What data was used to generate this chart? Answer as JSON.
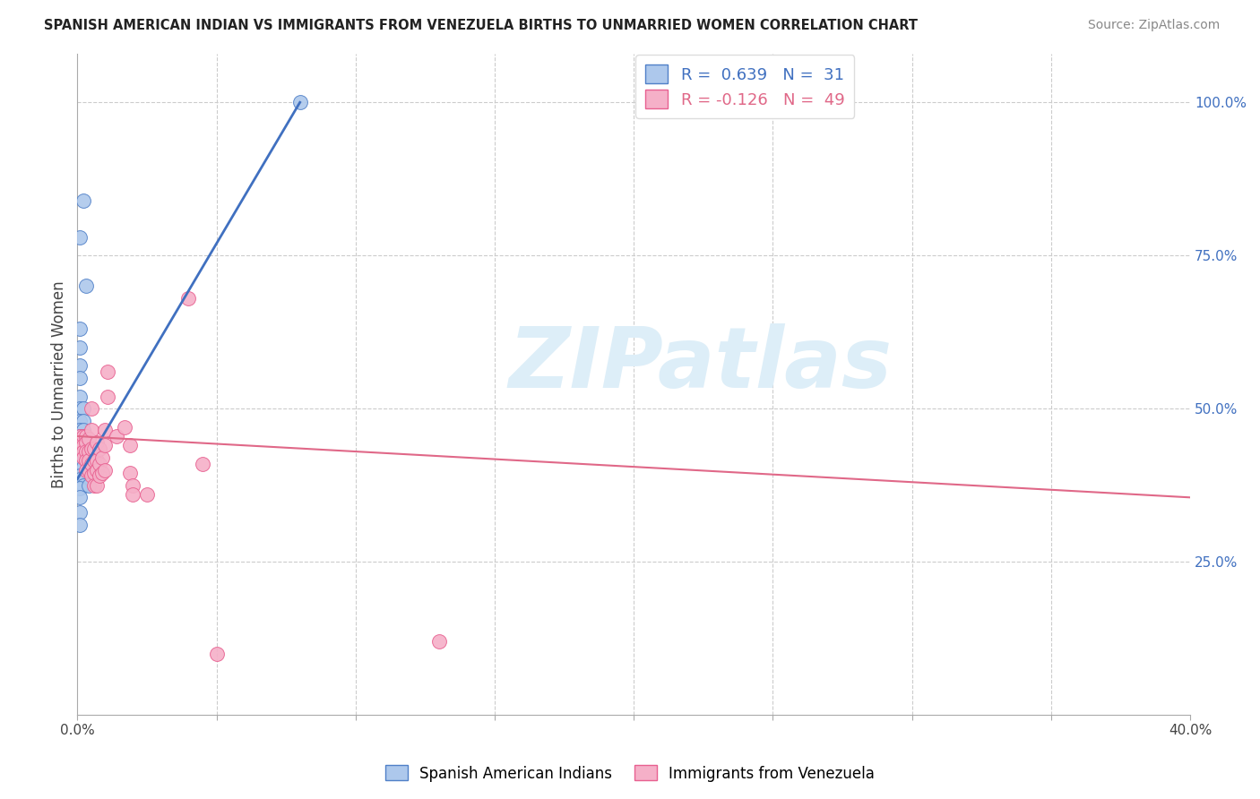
{
  "title": "SPANISH AMERICAN INDIAN VS IMMIGRANTS FROM VENEZUELA BIRTHS TO UNMARRIED WOMEN CORRELATION CHART",
  "source": "Source: ZipAtlas.com",
  "ylabel": "Births to Unmarried Women",
  "xlim": [
    0.0,
    0.4
  ],
  "ylim": [
    0.0,
    1.08
  ],
  "ytick_positions_right": [
    1.0,
    0.75,
    0.5,
    0.25
  ],
  "ytick_labels_right": [
    "100.0%",
    "75.0%",
    "50.0%",
    "25.0%"
  ],
  "xtick_positions": [
    0.0,
    0.05,
    0.1,
    0.15,
    0.2,
    0.25,
    0.3,
    0.35,
    0.4
  ],
  "xtick_labels": [
    "0.0%",
    "",
    "",
    "",
    "",
    "",
    "",
    "",
    "40.0%"
  ],
  "blue_R": "0.639",
  "blue_N": "31",
  "pink_R": "-0.126",
  "pink_N": "49",
  "blue_color": "#adc8ec",
  "pink_color": "#f5b0c8",
  "blue_edge_color": "#5080c8",
  "pink_edge_color": "#e86090",
  "blue_line_color": "#4070c0",
  "pink_line_color": "#e06888",
  "watermark_text": "ZIPatlas",
  "watermark_color": "#ddeef8",
  "blue_dots": [
    [
      0.001,
      0.78
    ],
    [
      0.002,
      0.84
    ],
    [
      0.001,
      0.63
    ],
    [
      0.003,
      0.7
    ],
    [
      0.001,
      0.6
    ],
    [
      0.001,
      0.57
    ],
    [
      0.001,
      0.55
    ],
    [
      0.001,
      0.52
    ],
    [
      0.001,
      0.5
    ],
    [
      0.002,
      0.5
    ],
    [
      0.001,
      0.48
    ],
    [
      0.002,
      0.48
    ],
    [
      0.001,
      0.465
    ],
    [
      0.002,
      0.465
    ],
    [
      0.001,
      0.455
    ],
    [
      0.002,
      0.455
    ],
    [
      0.002,
      0.445
    ],
    [
      0.001,
      0.44
    ],
    [
      0.002,
      0.43
    ],
    [
      0.001,
      0.42
    ],
    [
      0.001,
      0.41
    ],
    [
      0.002,
      0.405
    ],
    [
      0.001,
      0.39
    ],
    [
      0.001,
      0.385
    ],
    [
      0.002,
      0.375
    ],
    [
      0.001,
      0.37
    ],
    [
      0.001,
      0.355
    ],
    [
      0.001,
      0.33
    ],
    [
      0.001,
      0.31
    ],
    [
      0.004,
      0.375
    ],
    [
      0.08,
      1.0
    ]
  ],
  "pink_dots": [
    [
      0.001,
      0.455
    ],
    [
      0.001,
      0.44
    ],
    [
      0.002,
      0.455
    ],
    [
      0.002,
      0.44
    ],
    [
      0.002,
      0.43
    ],
    [
      0.002,
      0.42
    ],
    [
      0.003,
      0.455
    ],
    [
      0.003,
      0.445
    ],
    [
      0.003,
      0.43
    ],
    [
      0.003,
      0.415
    ],
    [
      0.003,
      0.4
    ],
    [
      0.004,
      0.45
    ],
    [
      0.004,
      0.43
    ],
    [
      0.004,
      0.415
    ],
    [
      0.004,
      0.4
    ],
    [
      0.005,
      0.5
    ],
    [
      0.005,
      0.465
    ],
    [
      0.005,
      0.435
    ],
    [
      0.005,
      0.41
    ],
    [
      0.005,
      0.39
    ],
    [
      0.006,
      0.435
    ],
    [
      0.006,
      0.415
    ],
    [
      0.006,
      0.395
    ],
    [
      0.006,
      0.375
    ],
    [
      0.007,
      0.445
    ],
    [
      0.007,
      0.415
    ],
    [
      0.007,
      0.4
    ],
    [
      0.007,
      0.375
    ],
    [
      0.008,
      0.435
    ],
    [
      0.008,
      0.41
    ],
    [
      0.008,
      0.39
    ],
    [
      0.009,
      0.42
    ],
    [
      0.009,
      0.395
    ],
    [
      0.01,
      0.465
    ],
    [
      0.01,
      0.44
    ],
    [
      0.01,
      0.4
    ],
    [
      0.011,
      0.56
    ],
    [
      0.011,
      0.52
    ],
    [
      0.014,
      0.455
    ],
    [
      0.017,
      0.47
    ],
    [
      0.019,
      0.44
    ],
    [
      0.019,
      0.395
    ],
    [
      0.02,
      0.375
    ],
    [
      0.02,
      0.36
    ],
    [
      0.025,
      0.36
    ],
    [
      0.04,
      0.68
    ],
    [
      0.045,
      0.41
    ],
    [
      0.05,
      0.1
    ],
    [
      0.13,
      0.12
    ]
  ],
  "blue_trendline": [
    [
      0.0,
      0.385
    ],
    [
      0.08,
      1.0
    ]
  ],
  "pink_trendline": [
    [
      0.0,
      0.455
    ],
    [
      0.4,
      0.355
    ]
  ]
}
